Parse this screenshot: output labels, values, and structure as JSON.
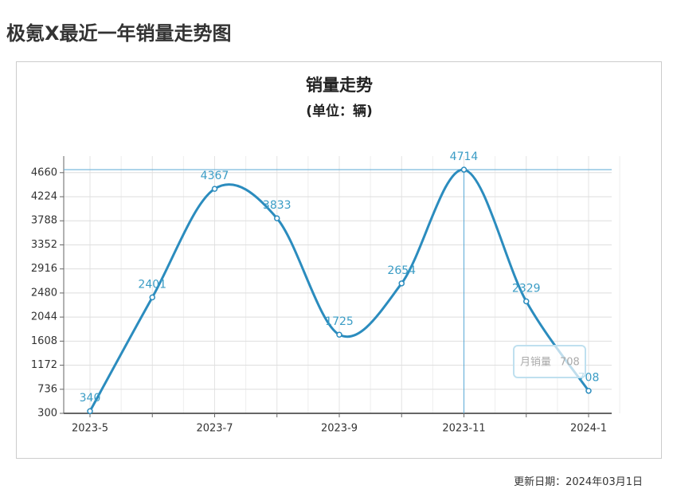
{
  "header": {
    "title": "极氪X最近一年销量走势图"
  },
  "chart_data": {
    "type": "line",
    "title": "销量走势",
    "subtitle": "(单位：辆)",
    "categories": [
      "2023-5",
      null,
      "2023-7",
      null,
      "2023-9",
      null,
      "2023-11",
      null,
      "2024-1"
    ],
    "series": [
      {
        "name": "月销量",
        "color": "#2b8cbe",
        "values": [
          340,
          2401,
          4367,
          3833,
          1725,
          2654,
          4714,
          2329,
          708
        ]
      }
    ],
    "ylim": [
      300,
      4960
    ],
    "yticks": [
      300,
      736,
      1172,
      1608,
      2044,
      2480,
      2916,
      3352,
      3788,
      4224,
      4660
    ],
    "grid": true
  },
  "footer": {
    "text": "更新日期：2024年03月1日"
  }
}
